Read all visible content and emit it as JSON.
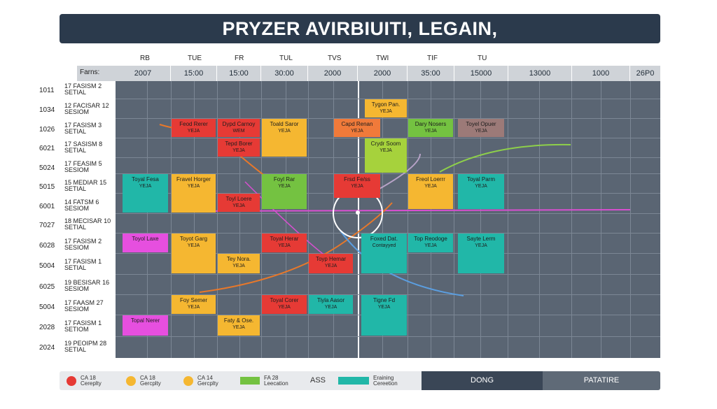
{
  "title": "PRYZER AVIRBIUITI, LEGAIN,",
  "days": [
    "RB",
    "TUE",
    "FR",
    "TUL",
    "TVS",
    "TWI",
    "TIF",
    "TU"
  ],
  "header_label": "Farns:",
  "header_cells": [
    "2007",
    "15:00",
    "15:00",
    "30:00",
    "2000",
    "2000",
    "35:00",
    "15000",
    "13000",
    "1000",
    "26P0"
  ],
  "rows": [
    {
      "num": "1011",
      "a": "17",
      "b": "FASISM",
      "c": "2",
      "d": "SETIAL"
    },
    {
      "num": "1034",
      "a": "12",
      "b": "FACISAR",
      "c": "12",
      "d": "SESIOM"
    },
    {
      "num": "1026",
      "a": "17",
      "b": "FASISM",
      "c": "3",
      "d": "SETIAL"
    },
    {
      "num": "6021",
      "a": "17",
      "b": "SASISM",
      "c": "8",
      "d": "SETIAL"
    },
    {
      "num": "5024",
      "a": "17",
      "b": "FEASIM",
      "c": "5",
      "d": "SESIOM"
    },
    {
      "num": "5015",
      "a": "15",
      "b": "MEDIAR",
      "c": "15",
      "d": "SETIAL"
    },
    {
      "num": "6001",
      "a": "14",
      "b": "FATSM",
      "c": "6",
      "d": "SESIOM"
    },
    {
      "num": "7027",
      "a": "18",
      "b": "MECISAR",
      "c": "10",
      "d": "SETIAL"
    },
    {
      "num": "6028",
      "a": "17",
      "b": "FASISM",
      "c": "2",
      "d": "SESIOM"
    },
    {
      "num": "5004",
      "a": "17",
      "b": "FASISM",
      "c": "1",
      "d": "SETIAL"
    },
    {
      "num": "6025",
      "a": "19",
      "b": "BESISAR",
      "c": "16",
      "d": "SESIOM"
    },
    {
      "num": "5004",
      "a": "17",
      "b": "FAASM",
      "c": "27",
      "d": "SESIOM"
    },
    {
      "num": "2028",
      "a": "17",
      "b": "FASISM",
      "c": "1",
      "d": "SETIOM"
    },
    {
      "num": "2024",
      "a": "19",
      "b": "PEOIPM",
      "c": "28",
      "d": "SETIAL"
    }
  ],
  "blocks": [
    {
      "t": "Tygon Pan.",
      "st": "YEJA"
    },
    {
      "t": "Feod Rerer",
      "st": "YEJA"
    },
    {
      "t": "Dypd Carnoy",
      "st": "WEM"
    },
    {
      "t": "Toald Saror",
      "st": "YEJA"
    },
    {
      "t": "Capd Renan",
      "st": "YEJA"
    },
    {
      "t": "Dary Nosers",
      "st": "YEJA"
    },
    {
      "t": "Toyel Opuer",
      "st": "YEJA"
    },
    {
      "t": "Tepd Borer",
      "st": "YEJA"
    },
    {
      "t": "Crydr Soom",
      "st": "YEJA"
    },
    {
      "t": "Toyal Fesa",
      "st": "YEJA"
    },
    {
      "t": "Fravel Horger",
      "st": "YEJA"
    },
    {
      "t": "Foyl Rar",
      "st": "YEJA"
    },
    {
      "t": "Frsd Fe/ss",
      "st": "YEJA"
    },
    {
      "t": "Freol Loerrr",
      "st": "YEJA"
    },
    {
      "t": "Toyal Parm",
      "st": "YEJA"
    },
    {
      "t": "Toyl Loere",
      "st": "YEJA"
    },
    {
      "t": "Toyol Laxe",
      "st": ""
    },
    {
      "t": "Toyot Garg",
      "st": "YEJA"
    },
    {
      "t": "Toyal Herar",
      "st": "YEJA"
    },
    {
      "t": "Foxed Dat.",
      "st": "Contayyed"
    },
    {
      "t": "Top Reodoge",
      "st": "YEJA"
    },
    {
      "t": "Sayte Lerm",
      "st": "YEJA"
    },
    {
      "t": "Tey Nora.",
      "st": "YEJA"
    },
    {
      "t": "Toyp Hemar",
      "st": "YEJA"
    },
    {
      "t": "Foy Semer",
      "st": "YEJA"
    },
    {
      "t": "Toyal Corer",
      "st": "YEJA"
    },
    {
      "t": "Tiyla Aasor",
      "st": "YEJA"
    },
    {
      "t": "Tigne Fd",
      "st": "YEJA"
    },
    {
      "t": "Topal Nerer",
      "st": ""
    },
    {
      "t": "Faty & Ose.",
      "st": "YEJA"
    }
  ],
  "legend": {
    "items": [
      {
        "line1": "CA 18",
        "line2": "Cereplty",
        "color": "#e63a35"
      },
      {
        "line1": "CA 18",
        "line2": "Gercplty",
        "color": "#f5b731"
      },
      {
        "line1": "CA 14",
        "line2": "Gercplty",
        "color": "#f5b731"
      },
      {
        "line1": "FA 28",
        "line2": "Leecation",
        "color": "#74c241"
      },
      {
        "line1": "ASS",
        "line2": "",
        "color": ""
      },
      {
        "line1": "Eraining",
        "line2": "Cereetion",
        "color": "#21b7a8"
      }
    ],
    "btn_dong": "DONG",
    "btn_patature": "PATATIRE"
  },
  "colors": {
    "red": "#e63a35",
    "orange": "#f5b731",
    "green": "#74c241",
    "teal": "#21b7a8",
    "pink": "#e64fdf",
    "mauve": "#9c7a78",
    "grid": "#5a6573",
    "title_bg": "#2b3a4c"
  }
}
